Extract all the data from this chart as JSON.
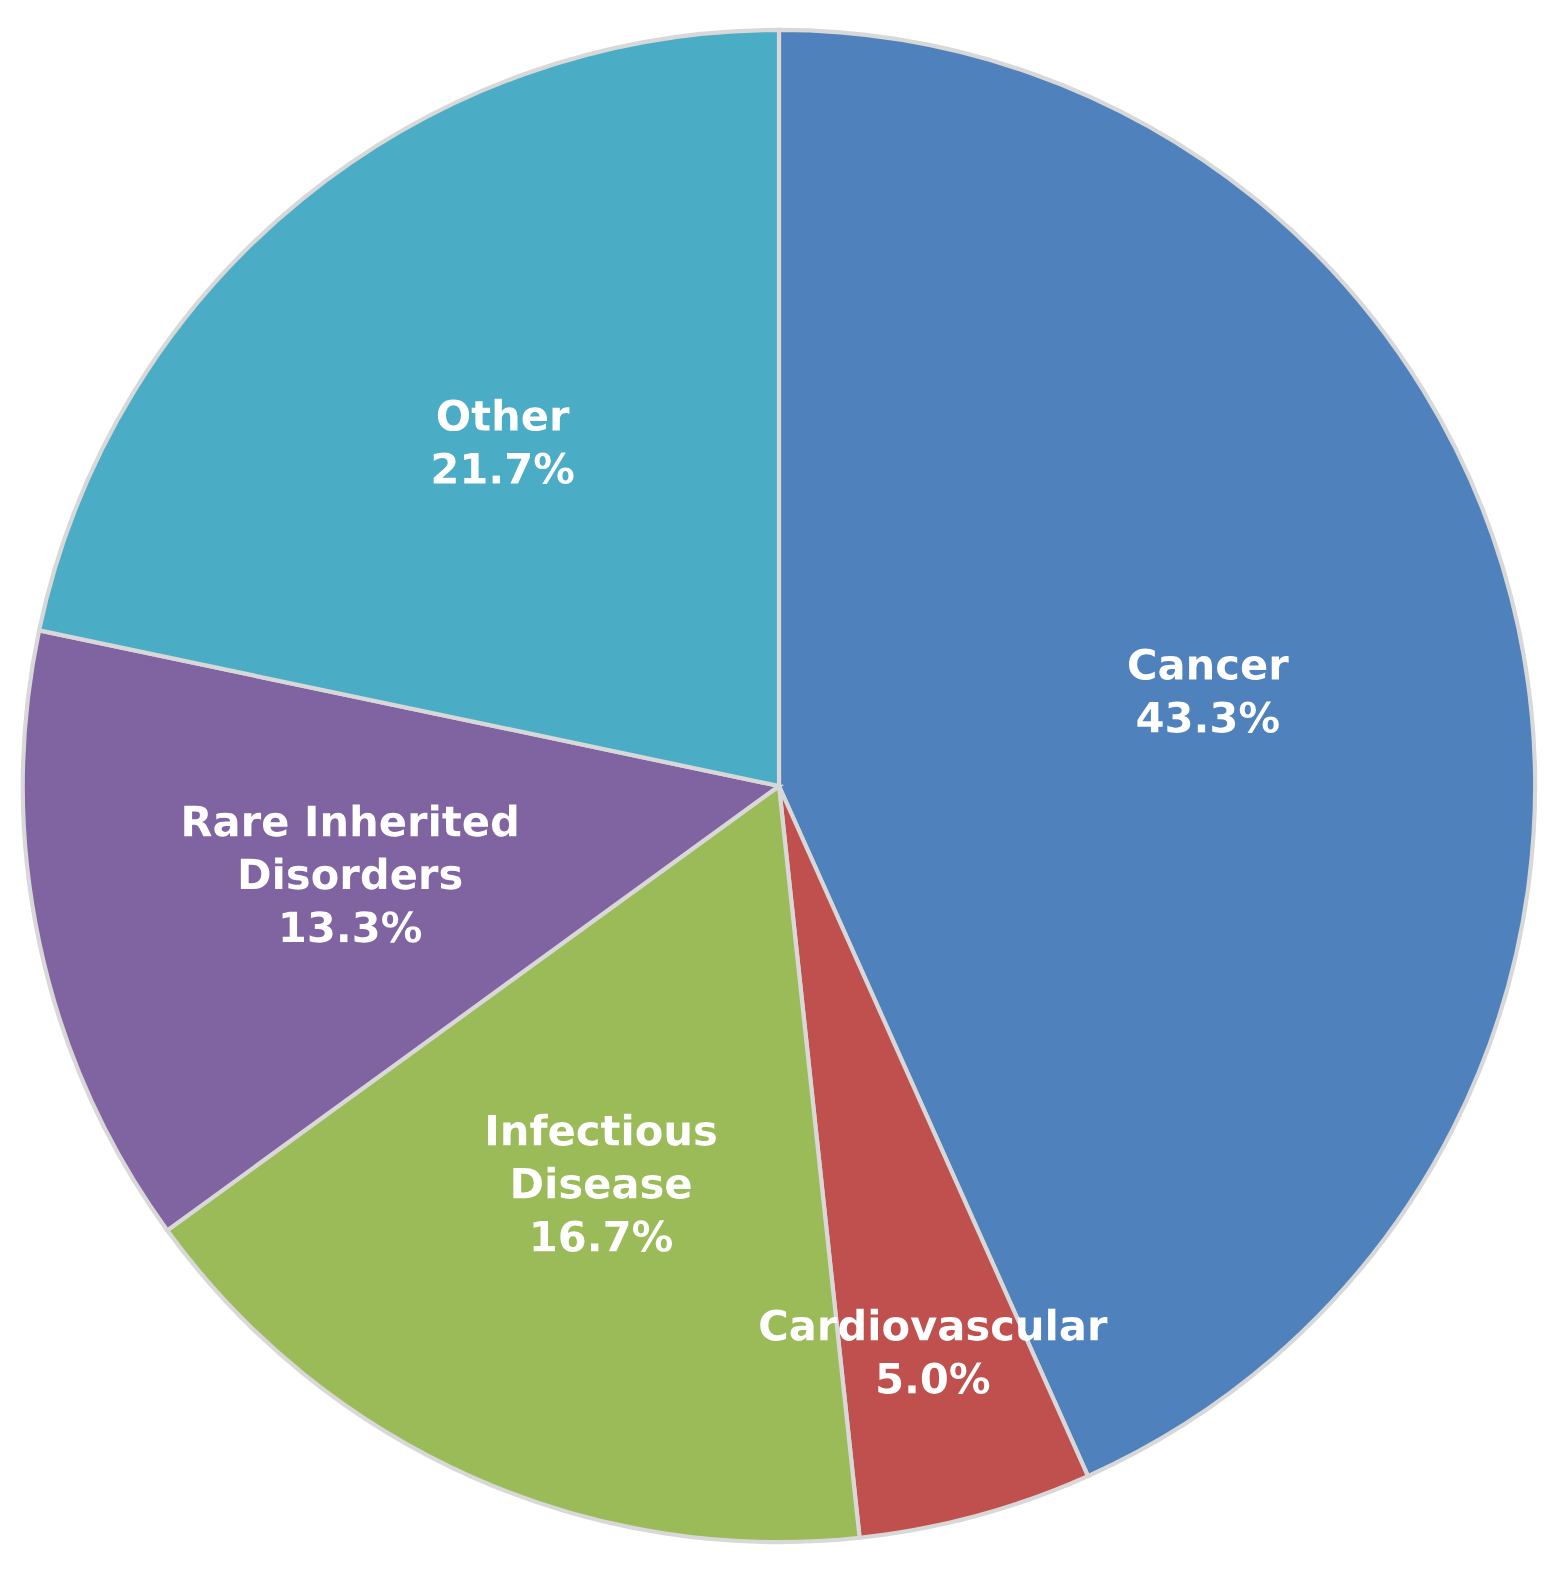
{
  "chart_data": {
    "type": "pie",
    "categories": [
      "Cancer",
      "Cardiovascular",
      "Infectious\nDisease",
      "Rare Inherited\nDisorders",
      "Other"
    ],
    "values": [
      43.3,
      5.0,
      16.7,
      13.3,
      21.7
    ],
    "value_labels": [
      "43.3%",
      "5.0%",
      "16.7%",
      "13.3%",
      "21.7%"
    ],
    "colors": [
      "#4f81bd",
      "#c0504d",
      "#9bbb59",
      "#8064a2",
      "#4bacc6"
    ],
    "legend": false
  }
}
